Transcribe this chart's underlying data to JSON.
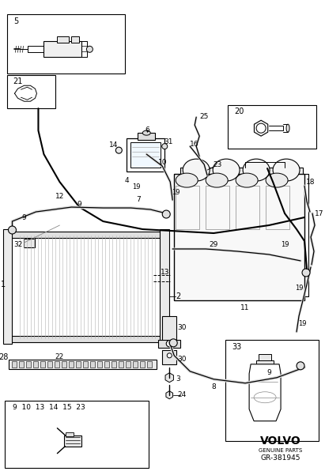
{
  "bg": "#ffffff",
  "lc": "#000000",
  "gray": "#888888",
  "lgray": "#cccccc",
  "volvo_logo": "VOLVO",
  "volvo_sub": "GENUINE PARTS",
  "part_code": "GR-381945",
  "fig_width": 4.11,
  "fig_height": 6.01,
  "dpi": 100,
  "clamp_label": "9  10  13  14  15  23"
}
